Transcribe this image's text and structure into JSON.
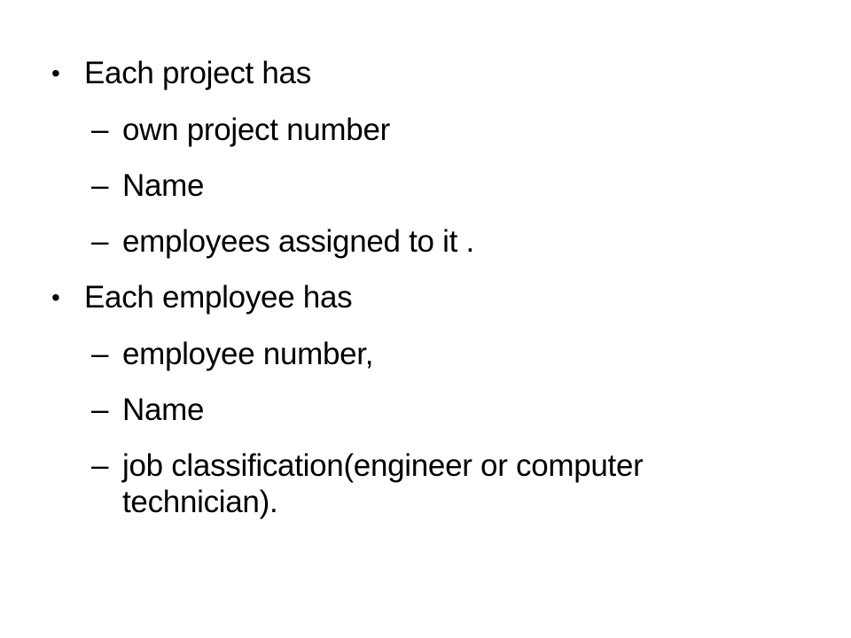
{
  "slide": {
    "bullets": [
      {
        "marker": "•",
        "text": "Each project has",
        "subitems": [
          {
            "marker": "–",
            "text": "own project number"
          },
          {
            "marker": "–",
            "text": "Name"
          },
          {
            "marker": "–",
            "text": "employees assigned to it ."
          }
        ]
      },
      {
        "marker": "•",
        "text": "Each employee has",
        "subitems": [
          {
            "marker": "–",
            "text": "employee number,"
          },
          {
            "marker": "–",
            "text": "Name"
          },
          {
            "marker": "–",
            "text": "job classification(engineer or computer",
            "text_line2": "technician)."
          }
        ]
      }
    ]
  }
}
